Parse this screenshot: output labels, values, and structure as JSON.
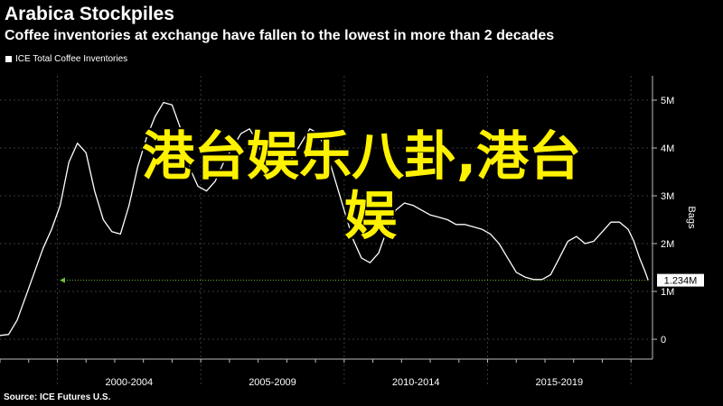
{
  "chart_data": {
    "type": "line",
    "title": "Arabica Stockpiles",
    "subtitle": "Coffee inventories at exchange have fallen to the lowest in more than 2 decades",
    "ylabel": "Bags",
    "source": "Source: ICE Futures U.S.",
    "legend_position": "top-left",
    "grid": true,
    "ylim": [
      0,
      5000000
    ],
    "y_ticks": [
      0,
      1000000,
      2000000,
      3000000,
      4000000,
      5000000
    ],
    "y_tick_labels": [
      "0",
      "1M",
      "2M",
      "3M",
      "4M",
      "5M"
    ],
    "xlim": [
      1998.0,
      2020.75
    ],
    "x_separators": [
      2000,
      2005,
      2010,
      2015,
      2020
    ],
    "x_category_labels": [
      {
        "label": "2000-2004",
        "center": 2002.5
      },
      {
        "label": "2005-2009",
        "center": 2007.5
      },
      {
        "label": "2010-2014",
        "center": 2012.5
      },
      {
        "label": "2015-2019",
        "center": 2017.5
      }
    ],
    "last_value": 1234000,
    "last_value_label": "1.234M",
    "series": [
      {
        "name": "ICE Total Coffee Inventories",
        "color": "#ffffff",
        "x": [
          1998.0,
          1998.3,
          1998.6,
          1998.9,
          1999.2,
          1999.5,
          1999.8,
          2000.1,
          2000.4,
          2000.7,
          2001.0,
          2001.3,
          2001.6,
          2001.9,
          2002.2,
          2002.5,
          2002.8,
          2003.1,
          2003.4,
          2003.7,
          2004.0,
          2004.3,
          2004.6,
          2004.9,
          2005.2,
          2005.5,
          2005.8,
          2006.1,
          2006.4,
          2006.7,
          2007.0,
          2007.3,
          2007.6,
          2007.9,
          2008.2,
          2008.5,
          2008.8,
          2009.1,
          2009.4,
          2009.7,
          2010.0,
          2010.3,
          2010.6,
          2010.9,
          2011.2,
          2011.5,
          2011.8,
          2012.1,
          2012.4,
          2012.7,
          2013.0,
          2013.3,
          2013.6,
          2013.9,
          2014.2,
          2014.5,
          2014.8,
          2015.1,
          2015.4,
          2015.7,
          2016.0,
          2016.3,
          2016.6,
          2016.9,
          2017.2,
          2017.5,
          2017.8,
          2018.1,
          2018.4,
          2018.7,
          2019.0,
          2019.3,
          2019.6,
          2019.9,
          2020.1,
          2020.3,
          2020.5,
          2020.6
        ],
        "values": [
          80000,
          100000,
          400000,
          900000,
          1400000,
          1900000,
          2300000,
          2800000,
          3700000,
          4100000,
          3900000,
          3100000,
          2500000,
          2250000,
          2200000,
          2800000,
          3600000,
          4200000,
          4650000,
          4950000,
          4900000,
          4400000,
          3600000,
          3200000,
          3100000,
          3300000,
          3700000,
          4000000,
          4300000,
          4400000,
          4100000,
          3500000,
          3400000,
          3600000,
          3800000,
          4100000,
          4400000,
          4300000,
          3900000,
          3300000,
          2700000,
          2100000,
          1700000,
          1600000,
          1800000,
          2300000,
          2700000,
          2850000,
          2800000,
          2700000,
          2600000,
          2550000,
          2500000,
          2400000,
          2400000,
          2350000,
          2300000,
          2200000,
          2000000,
          1700000,
          1400000,
          1300000,
          1250000,
          1250000,
          1350000,
          1700000,
          2050000,
          2150000,
          2000000,
          2050000,
          2250000,
          2450000,
          2450000,
          2300000,
          2050000,
          1700000,
          1400000,
          1234000
        ]
      }
    ]
  }
}
